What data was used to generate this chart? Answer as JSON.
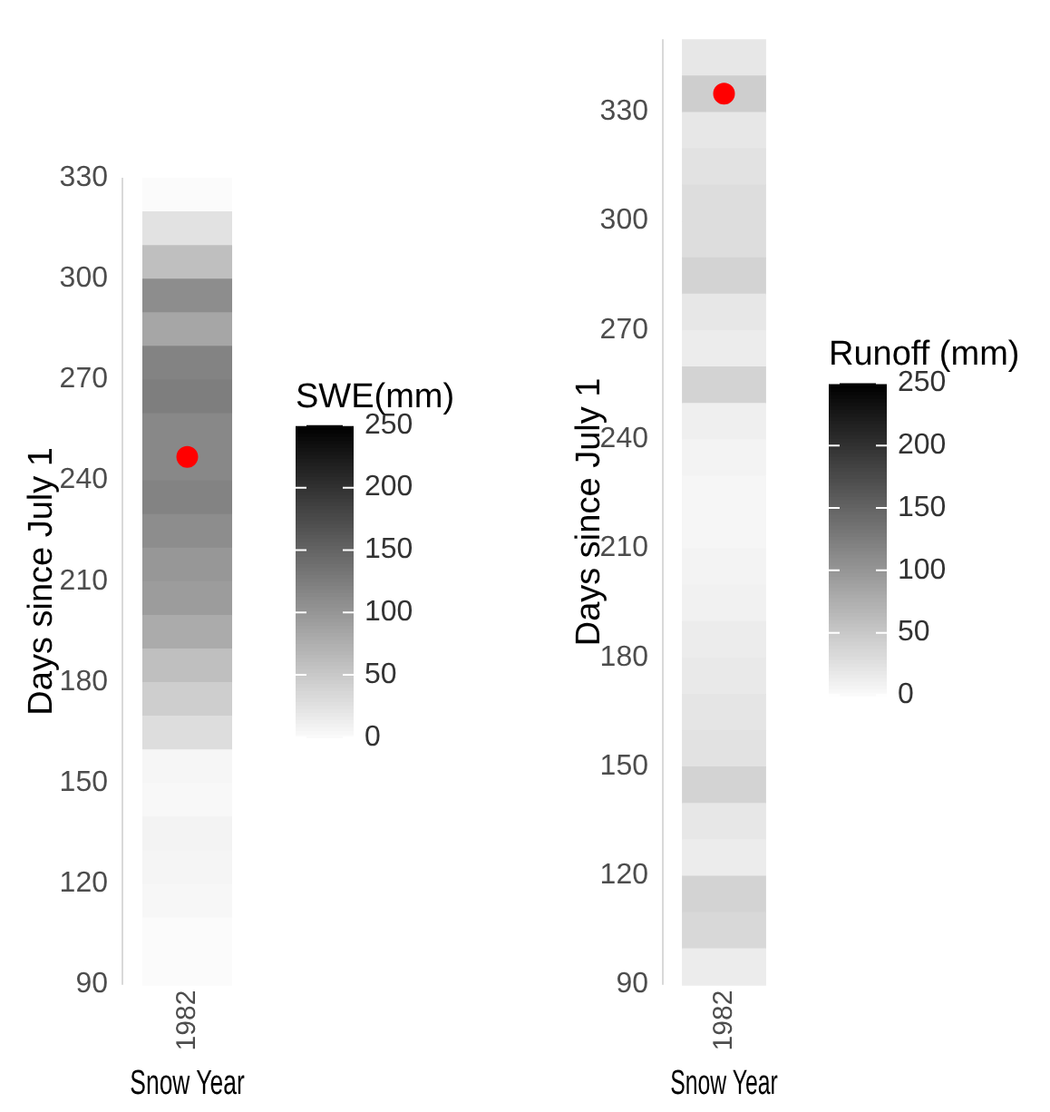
{
  "chart_data": [
    {
      "type": "heatmap",
      "xlabel": "Snow Year",
      "ylabel": "Days since July 1",
      "clabel": "SWE(mm)",
      "categories": [
        "1982"
      ],
      "ylim": [
        90,
        330
      ],
      "yticks": [
        90,
        120,
        150,
        180,
        210,
        240,
        270,
        300,
        330
      ],
      "clim": [
        0,
        250
      ],
      "cticks": [
        0,
        50,
        100,
        150,
        200,
        250
      ],
      "grid": false,
      "marker": "circle",
      "cells": [
        [
          0
        ],
        [
          25
        ],
        [
          60
        ],
        [
          110
        ],
        [
          85
        ],
        [
          120
        ],
        [
          125
        ],
        [
          115
        ],
        [
          115
        ],
        [
          120
        ],
        [
          110
        ],
        [
          100
        ],
        [
          95
        ],
        [
          80
        ],
        [
          60
        ],
        [
          45
        ],
        [
          30
        ],
        [
          5
        ],
        [
          3
        ],
        [
          8
        ],
        [
          6
        ],
        [
          4
        ],
        [
          0
        ],
        [
          0
        ]
      ],
      "series": [
        {
          "type": "scatter",
          "values": [
            247
          ],
          "color": "#ff0000"
        }
      ]
    },
    {
      "type": "heatmap",
      "xlabel": "Snow Year",
      "ylabel": "Days since July 1",
      "clabel": "Runoff (mm)",
      "categories": [
        "1982"
      ],
      "ylim": [
        90,
        350
      ],
      "yticks": [
        90,
        120,
        150,
        180,
        210,
        240,
        270,
        300,
        330
      ],
      "clim": [
        0,
        250
      ],
      "cticks": [
        0,
        50,
        100,
        150,
        200,
        250
      ],
      "grid": false,
      "marker": "circle",
      "cells": [
        [
          20
        ],
        [
          45
        ],
        [
          20
        ],
        [
          25
        ],
        [
          30
        ],
        [
          30
        ],
        [
          40
        ],
        [
          20
        ],
        [
          15
        ],
        [
          40
        ],
        [
          12
        ],
        [
          8
        ],
        [
          5
        ],
        [
          5
        ],
        [
          8
        ],
        [
          10
        ],
        [
          15
        ],
        [
          18
        ],
        [
          22
        ],
        [
          25
        ],
        [
          40
        ],
        [
          20
        ],
        [
          15
        ],
        [
          40
        ],
        [
          35
        ],
        [
          15
        ]
      ],
      "series": [
        {
          "type": "scatter",
          "values": [
            335
          ],
          "color": "#ff0000"
        }
      ]
    }
  ]
}
